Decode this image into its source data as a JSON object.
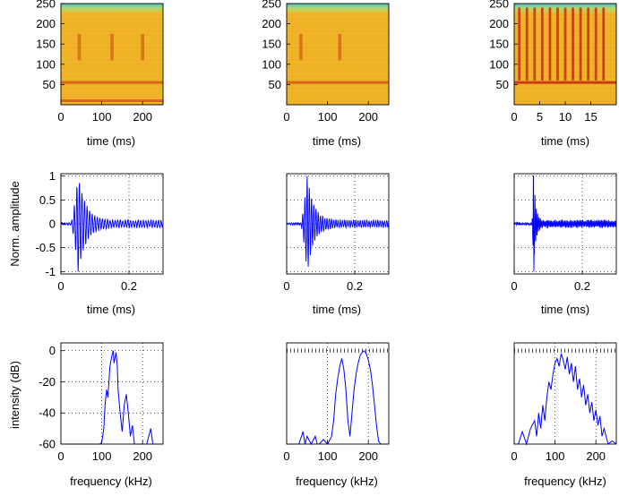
{
  "chart_data": [
    {
      "type": "heatmap",
      "panel": "spectrogram-1",
      "xlabel": "time (ms)",
      "xlim": [
        0,
        250
      ],
      "ylim": [
        0,
        250
      ],
      "xticks": [
        0,
        100,
        200
      ],
      "yticks": [
        50,
        100,
        150,
        200,
        250
      ],
      "vertical_streaks_ms": [
        45,
        125,
        200
      ],
      "horizontal_bands": [
        55,
        10
      ],
      "colors": {
        "top": "#4cc8c8",
        "body": "#f0b428",
        "band": "#d25a14"
      }
    },
    {
      "type": "heatmap",
      "panel": "spectrogram-2",
      "xlabel": "time (ms)",
      "xlim": [
        0,
        250
      ],
      "ylim": [
        0,
        250
      ],
      "xticks": [
        0,
        100,
        200
      ],
      "yticks": [
        50,
        100,
        150,
        200,
        250
      ],
      "vertical_streaks_ms": [
        35,
        130
      ],
      "horizontal_bands": [
        55
      ],
      "colors": {
        "top": "#4cc8c8",
        "body": "#f0b428",
        "band": "#d25a14"
      }
    },
    {
      "type": "heatmap",
      "panel": "spectrogram-3",
      "xlabel": "time (ms)",
      "xlim": [
        0,
        20
      ],
      "ylim": [
        0,
        250
      ],
      "xticks": [
        0,
        5,
        10,
        15
      ],
      "yticks": [
        50,
        100,
        150,
        200,
        250
      ],
      "vertical_streaks_ms": [
        1,
        2.5,
        4,
        5.5,
        7,
        8.5,
        10,
        11.5,
        13,
        14.5,
        16,
        17.5
      ],
      "horizontal_bands": [
        55
      ],
      "colors": {
        "top": "#4cc8c8",
        "body": "#f0b428",
        "band": "#c0280f"
      }
    },
    {
      "type": "line",
      "panel": "waveform-1",
      "xlabel": "time (ms)",
      "ylabel": "Norm. amplitude",
      "xlim": [
        0,
        0.3
      ],
      "ylim": [
        -1.05,
        1.05
      ],
      "xticks": [
        0,
        0.2
      ],
      "yticks": [
        -1,
        -0.5,
        0,
        0.5,
        1
      ],
      "grid": true,
      "color": "#0000ff",
      "series": [
        {
          "x_start": 0,
          "x_end": 0.3,
          "points": 380,
          "onset": 0.028,
          "peak": 0.05,
          "peak_amp": 1.0,
          "decay": 0.022,
          "osc_period": 0.0075
        }
      ]
    },
    {
      "type": "line",
      "panel": "waveform-2",
      "xlabel": "time (ms)",
      "xlim": [
        0,
        0.3
      ],
      "ylim": [
        -1.05,
        1.05
      ],
      "xticks": [
        0,
        0.2
      ],
      "grid": true,
      "color": "#0000ff",
      "series": [
        {
          "x_start": 0,
          "x_end": 0.3,
          "points": 380,
          "onset": 0.04,
          "peak": 0.06,
          "peak_amp": 1.0,
          "decay": 0.018,
          "osc_period": 0.0065
        }
      ]
    },
    {
      "type": "line",
      "panel": "waveform-3",
      "xlabel": "time (ms)",
      "xlim": [
        0,
        0.3
      ],
      "ylim": [
        -1.05,
        1.05
      ],
      "xticks": [
        0,
        0.2
      ],
      "grid": true,
      "color": "#0000ff",
      "series": [
        {
          "x_start": 0,
          "x_end": 0.3,
          "points": 380,
          "onset": 0.052,
          "peak": 0.057,
          "peak_amp": 1.0,
          "decay": 0.006,
          "osc_period": 0.004
        }
      ]
    },
    {
      "type": "line",
      "panel": "spectrum-1",
      "xlabel": "frequency (kHz)",
      "ylabel": "intensity (dB)",
      "xlim": [
        0,
        250
      ],
      "ylim": [
        -60,
        5
      ],
      "xticks": [
        0,
        100,
        200
      ],
      "yticks": [
        -60,
        -40,
        -20,
        0
      ],
      "grid": true,
      "color": "#0000ff",
      "x": [
        0,
        20,
        40,
        60,
        80,
        95,
        100,
        105,
        108,
        112,
        115,
        118,
        120,
        125,
        128,
        130,
        135,
        138,
        140,
        145,
        150,
        155,
        160,
        165,
        170,
        175,
        180,
        190,
        200,
        210,
        215,
        220,
        225,
        230,
        240,
        250
      ],
      "y": [
        -60,
        -60,
        -60,
        -60,
        -60,
        -60,
        -59,
        -50,
        -35,
        -25,
        -30,
        -18,
        -10,
        -3,
        0,
        -8,
        -1,
        -10,
        -25,
        -40,
        -52,
        -35,
        -28,
        -40,
        -55,
        -48,
        -60,
        -60,
        -60,
        -60,
        -55,
        -50,
        -60,
        -60,
        -60,
        -60
      ]
    },
    {
      "type": "line",
      "panel": "spectrum-2",
      "xlabel": "frequency (kHz)",
      "xlim": [
        0,
        250
      ],
      "ylim": [
        -60,
        5
      ],
      "xticks": [
        0,
        100,
        200
      ],
      "grid": true,
      "color": "#0000ff",
      "x": [
        0,
        30,
        40,
        45,
        50,
        60,
        70,
        75,
        80,
        90,
        100,
        110,
        115,
        120,
        125,
        130,
        135,
        140,
        145,
        150,
        155,
        160,
        165,
        170,
        175,
        180,
        185,
        190,
        195,
        200,
        205,
        210,
        215,
        220,
        225,
        230,
        250
      ],
      "y": [
        -60,
        -60,
        -52,
        -60,
        -55,
        -60,
        -55,
        -60,
        -60,
        -57,
        -60,
        -55,
        -45,
        -28,
        -18,
        -10,
        -5,
        -12,
        -25,
        -45,
        -55,
        -40,
        -25,
        -15,
        -8,
        -3,
        -1,
        0,
        -2,
        -6,
        -12,
        -22,
        -35,
        -48,
        -58,
        -60,
        -60
      ]
    },
    {
      "type": "line",
      "panel": "spectrum-3",
      "xlabel": "frequency (kHz)",
      "xlim": [
        0,
        250
      ],
      "ylim": [
        -60,
        5
      ],
      "xticks": [
        0,
        100,
        200
      ],
      "grid": true,
      "color": "#0000ff",
      "x": [
        0,
        10,
        20,
        30,
        40,
        50,
        55,
        60,
        65,
        70,
        75,
        80,
        85,
        90,
        95,
        100,
        105,
        110,
        115,
        120,
        125,
        130,
        135,
        140,
        145,
        150,
        155,
        160,
        165,
        170,
        175,
        180,
        185,
        190,
        195,
        200,
        205,
        210,
        215,
        220,
        230,
        240,
        250
      ],
      "y": [
        -60,
        -60,
        -52,
        -60,
        -50,
        -45,
        -55,
        -40,
        -50,
        -35,
        -45,
        -30,
        -20,
        -25,
        -15,
        -8,
        -5,
        -10,
        -2,
        -6,
        -12,
        -4,
        -15,
        -8,
        -20,
        -10,
        -25,
        -18,
        -30,
        -22,
        -35,
        -28,
        -40,
        -33,
        -45,
        -38,
        -48,
        -42,
        -55,
        -50,
        -60,
        -58,
        -60
      ]
    }
  ]
}
